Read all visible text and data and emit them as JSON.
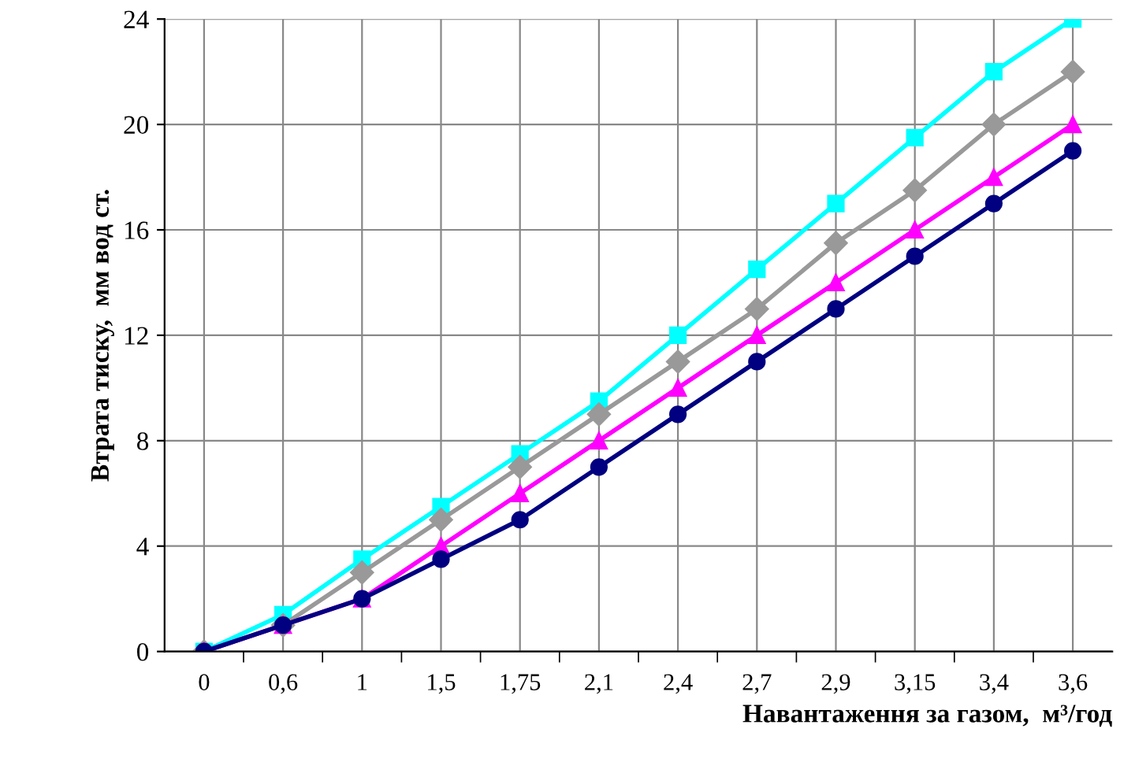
{
  "chart_data": {
    "type": "line",
    "xlabel": "Навантаження за газом,  м³/год",
    "ylabel": "Втрата тиску,  мм вод ст.",
    "categories": [
      "0",
      "0,6",
      "1",
      "1,5",
      "1,75",
      "2,1",
      "2,4",
      "2,7",
      "2,9",
      "3,15",
      "3,4",
      "3,6"
    ],
    "ylim": [
      0,
      24
    ],
    "yticks": [
      0,
      4,
      8,
      12,
      16,
      20,
      24
    ],
    "grid": true,
    "line_style": "solid",
    "series": [
      {
        "color": "#00ffff",
        "marker": "square",
        "values": [
          0,
          1.4,
          3.5,
          5.5,
          7.5,
          9.5,
          12,
          14.5,
          17,
          19.5,
          22,
          24
        ]
      },
      {
        "color": "#999999",
        "marker": "diamond",
        "values": [
          0,
          1,
          3,
          5,
          7,
          9,
          11,
          13,
          15.5,
          17.5,
          20,
          22
        ]
      },
      {
        "color": "#ff00ff",
        "marker": "triangle",
        "values": [
          0,
          1,
          2,
          4,
          6,
          8,
          10,
          12,
          14,
          16,
          18,
          20
        ]
      },
      {
        "color": "#000080",
        "marker": "circle",
        "values": [
          0,
          1,
          2,
          3.5,
          5,
          7,
          9,
          11,
          13,
          15,
          17,
          19
        ]
      }
    ]
  }
}
